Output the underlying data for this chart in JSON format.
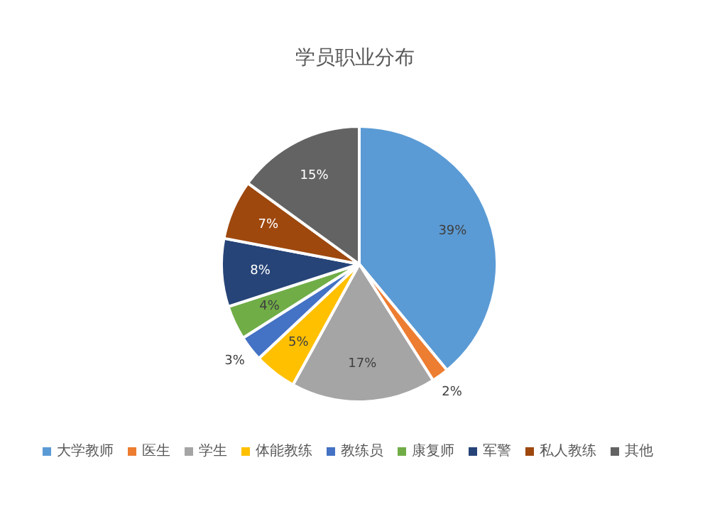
{
  "chart_data": {
    "type": "pie",
    "title": "学员职业分布",
    "categories": [
      "大学教师",
      "医生",
      "学生",
      "体能教练",
      "教练员",
      "康复师",
      "军警",
      "私人教练",
      "其他"
    ],
    "values": [
      39,
      2,
      17,
      5,
      3,
      4,
      8,
      7,
      15
    ],
    "value_labels": [
      "39%",
      "2%",
      "17%",
      "5%",
      "3%",
      "4%",
      "8%",
      "7%",
      "15%"
    ],
    "colors": [
      "#5b9bd5",
      "#ed7d31",
      "#a5a5a5",
      "#ffc000",
      "#4472c4",
      "#70ad47",
      "#264478",
      "#9e480e",
      "#636363"
    ],
    "legend": "bottom"
  }
}
